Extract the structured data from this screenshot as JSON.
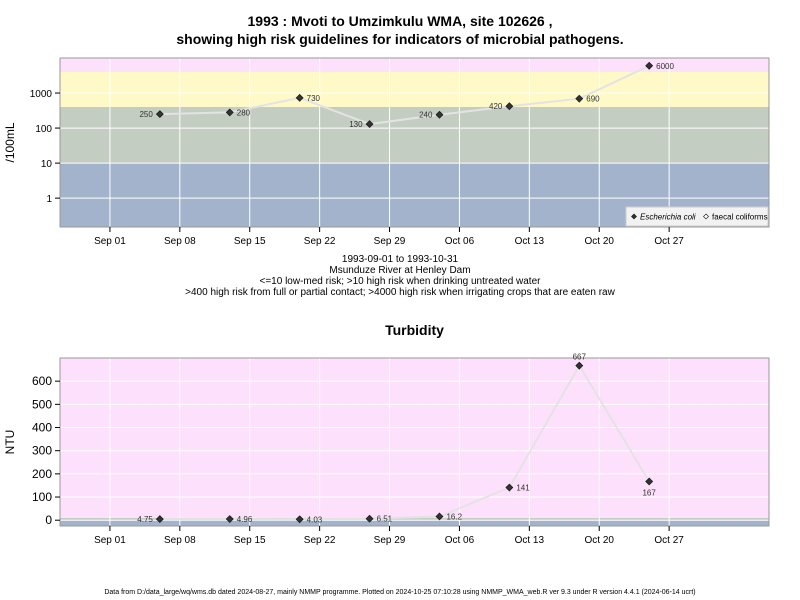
{
  "page": {
    "title_line1": "1993 : Mvoti to Umzimkulu WMA, site 102626 ,",
    "title_line2": "showing high risk guidelines for indicators of microbial pathogens.",
    "info_lines": [
      "1993-09-01 to 1993-10-31",
      "Msunduze River at Henley Dam",
      "<=10 low-med risk; >10 high risk when drinking untreated water",
      ">400 high risk from full or partial contact; >4000 high risk when irrigating crops that are eaten raw"
    ],
    "footer": "Data from D:/data_large/wq/wms.db dated 2024-08-27, mainly NMMP programme. Plotted on 2024-10-25 07:10:28 using NMMP_WMA_web.R ver 9.3 under R version 4.4.1 (2024-06-14 ucrt)"
  },
  "chart_data": [
    {
      "type": "line",
      "title": "",
      "xlabel": "",
      "ylabel": "/100mL",
      "y_scale": "log10",
      "ylim": [
        0.15,
        10000
      ],
      "xlim": [
        "1993-08-27",
        "1993-11-06"
      ],
      "yticks": [
        1,
        10,
        100,
        1000
      ],
      "ytick_labels": [
        "1",
        "10",
        "100",
        "1000"
      ],
      "xticks": [
        "1993-09-01",
        "1993-09-08",
        "1993-09-15",
        "1993-09-22",
        "1993-09-29",
        "1993-10-06",
        "1993-10-13",
        "1993-10-20",
        "1993-10-27"
      ],
      "xtick_labels": [
        "Sep 01",
        "Sep 08",
        "Sep 15",
        "Sep 22",
        "Sep 29",
        "Oct 06",
        "Oct 13",
        "Oct 20",
        "Oct 27"
      ],
      "grid": true,
      "bands": [
        {
          "from": 0.15,
          "to": 10,
          "color": "#a3b3cc"
        },
        {
          "from": 10,
          "to": 400,
          "color": "#c4cdc2"
        },
        {
          "from": 400,
          "to": 4000,
          "color": "#fff9c8"
        },
        {
          "from": 4000,
          "to": 10000,
          "color": "#fde0fb"
        }
      ],
      "legend": {
        "position": "bottom-right",
        "entries": [
          "Escherichia coli",
          "faecal coliforms"
        ]
      },
      "series": [
        {
          "name": "Escherichia coli",
          "color": "#333333",
          "line_color": "#e3e3e3",
          "x": [
            "1993-09-06",
            "1993-09-13",
            "1993-09-20",
            "1993-09-27",
            "1993-10-04",
            "1993-10-11",
            "1993-10-18",
            "1993-10-25"
          ],
          "y": [
            250,
            280,
            730,
            130,
            240,
            420,
            690,
            6000
          ],
          "labels": [
            "250",
            "280",
            "730",
            "130",
            "240",
            "420",
            "690",
            "6000"
          ],
          "label_side": [
            "left",
            "right",
            "right",
            "left",
            "left",
            "left",
            "right",
            "right"
          ]
        }
      ]
    },
    {
      "type": "line",
      "title": "Turbidity",
      "xlabel": "",
      "ylabel": "NTU",
      "y_scale": "linear",
      "ylim": [
        -25,
        700
      ],
      "xlim": [
        "1993-08-27",
        "1993-11-06"
      ],
      "yticks": [
        0,
        100,
        200,
        300,
        400,
        500,
        600
      ],
      "ytick_labels": [
        "0",
        "100",
        "200",
        "300",
        "400",
        "500",
        "600"
      ],
      "xticks": [
        "1993-09-01",
        "1993-09-08",
        "1993-09-15",
        "1993-09-22",
        "1993-09-29",
        "1993-10-06",
        "1993-10-13",
        "1993-10-20",
        "1993-10-27"
      ],
      "xtick_labels": [
        "Sep 01",
        "Sep 08",
        "Sep 15",
        "Sep 22",
        "Sep 29",
        "Oct 06",
        "Oct 13",
        "Oct 20",
        "Oct 27"
      ],
      "grid": true,
      "bands": [
        {
          "from": -25,
          "to": 0,
          "color": "#a3b3cc"
        },
        {
          "from": 0,
          "to": 10,
          "color": "#c4cdc2"
        },
        {
          "from": 10,
          "to": 700,
          "color": "#fde0fb"
        }
      ],
      "series": [
        {
          "name": "",
          "color": "#333333",
          "line_color": "#e3e3e3",
          "x": [
            "1993-09-06",
            "1993-09-13",
            "1993-09-20",
            "1993-09-27",
            "1993-10-04",
            "1993-10-11",
            "1993-10-18",
            "1993-10-25"
          ],
          "y": [
            4.75,
            4.96,
            4.03,
            6.51,
            16.2,
            141,
            667,
            167
          ],
          "labels": [
            "4.75",
            "4.96",
            "4.03",
            "6.51",
            "16.2",
            "141",
            "667",
            "167"
          ],
          "label_side": [
            "left",
            "right",
            "right",
            "right",
            "right",
            "right",
            "above",
            "below"
          ]
        }
      ]
    }
  ]
}
